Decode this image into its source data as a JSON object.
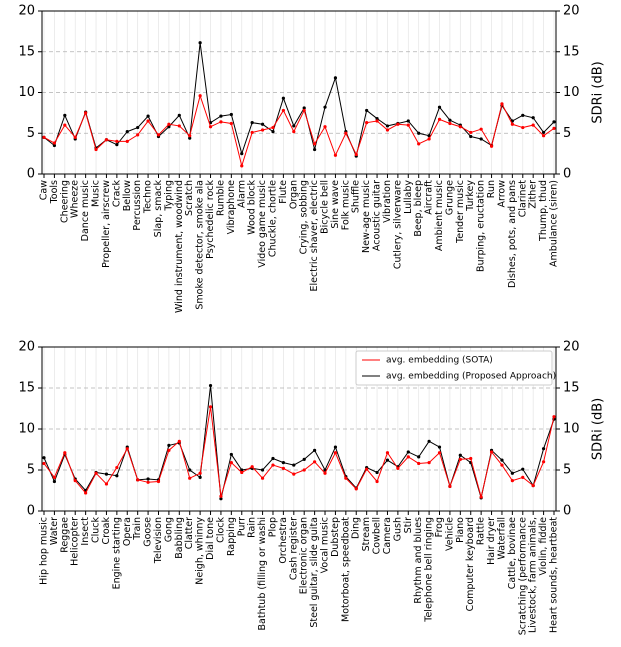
{
  "chart_data": [
    {
      "type": "line",
      "categories": [
        "Caw",
        "Tools",
        "Cheering",
        "Wheeze",
        "Dance music",
        "Music",
        "Propeller, airscrew",
        "Crack",
        "Bellow",
        "Percussion",
        "Techno",
        "Slap, smack",
        "Typing",
        "Wind instrument, woodwind",
        "Scratch",
        "Smoke detector, smoke ala",
        "Psychedelic rock",
        "Rumble",
        "Vibraphone",
        "Alarm",
        "Wood block",
        "Video game music",
        "Chuckle, chortle",
        "Flute",
        "Organ",
        "Crying, sobbing",
        "Electric shaver, electric",
        "Bicycle bell",
        "Sine wave",
        "Folk music",
        "Shuffle",
        "New-age music",
        "Acoustic guitar",
        "Vibration",
        "Cutlery, silverware",
        "Lullaby",
        "Beep, bleep",
        "Aircraft",
        "Ambient music",
        "Grunge",
        "Tender music",
        "Turkey",
        "Burping, eructation",
        "Run",
        "Arrow",
        "Dishes, pots, and pans",
        "Clarinet",
        "Zither",
        "Thump, thud",
        "Ambulance (siren)"
      ],
      "series": [
        {
          "color": "#ff0000",
          "values": [
            4.5,
            3.8,
            6.0,
            4.5,
            7.5,
            3.0,
            4.2,
            4.0,
            4.0,
            4.8,
            6.5,
            4.8,
            6.1,
            5.9,
            4.7,
            9.6,
            5.8,
            6.4,
            6.2,
            1.0,
            5.1,
            5.4,
            5.7,
            7.8,
            5.2,
            7.8,
            3.7,
            5.8,
            2.3,
            5.0,
            2.4,
            6.3,
            6.5,
            5.4,
            6.1,
            6.0,
            3.7,
            4.3,
            6.7,
            6.2,
            5.8,
            5.1,
            5.5,
            3.4,
            8.6,
            6.1,
            5.7,
            6.0,
            4.7,
            5.6
          ]
        },
        {
          "color": "#000000",
          "values": [
            4.5,
            3.5,
            7.2,
            4.3,
            7.6,
            3.2,
            4.2,
            3.6,
            5.2,
            5.7,
            7.1,
            4.6,
            5.8,
            7.2,
            4.4,
            16.1,
            6.3,
            7.1,
            7.3,
            2.5,
            6.3,
            6.1,
            5.2,
            9.3,
            5.9,
            8.1,
            3.0,
            8.2,
            11.8,
            5.2,
            2.2,
            7.8,
            6.8,
            5.9,
            6.2,
            6.5,
            5.0,
            4.7,
            8.2,
            6.6,
            6.0,
            4.6,
            4.3,
            3.5,
            8.4,
            6.5,
            7.2,
            6.9,
            5.1,
            6.4
          ]
        }
      ],
      "ylim": [
        0,
        20
      ],
      "yticks": [
        0,
        5,
        10,
        15,
        20
      ],
      "y2label": "SDRi (dB)",
      "grid": true
    },
    {
      "type": "line",
      "categories": [
        "Hip hop music",
        "Water",
        "Reggae",
        "Helicopter",
        "Insect",
        "Cluck",
        "Croak",
        "Engine starting",
        "Opera",
        "Train",
        "Goose",
        "Television",
        "Gong",
        "Babbling",
        "Clatter",
        "Neigh, whinny",
        "Dial tone",
        "Clock",
        "Rapping",
        "Purr",
        "Rain",
        "Bathtub (filling or washi",
        "Plop",
        "Orchestra",
        "Cash register",
        "Electronic organ",
        "Steel guitar, slide guita",
        "Vocal music",
        "Dubstep",
        "Motorboat, speedboat",
        "Ding",
        "Stream",
        "Cowbell",
        "Camera",
        "Gush",
        "Stir",
        "Rhythm and blues",
        "Telephone bell ringing",
        "Frog",
        "Vehicle",
        "Piano",
        "Computer keyboard",
        "Rattle",
        "Hair dryer",
        "Waterfall",
        "Cattle, bovinae",
        "Scratching (performance",
        "Livestock, farm animals,",
        "Violin, fiddle",
        "Heart sounds, heartbeat"
      ],
      "series": [
        {
          "name": "avg. embedding (SOTA)",
          "color": "#ff0000",
          "values": [
            5.8,
            4.1,
            7.1,
            3.7,
            2.2,
            4.6,
            3.3,
            5.3,
            7.6,
            3.8,
            3.5,
            3.6,
            7.4,
            8.5,
            4.0,
            4.6,
            12.7,
            1.8,
            5.9,
            4.7,
            5.4,
            4.0,
            5.6,
            5.2,
            4.5,
            5.0,
            6.0,
            4.6,
            7.1,
            4.0,
            2.7,
            5.1,
            3.6,
            7.1,
            5.2,
            6.6,
            5.8,
            5.9,
            7.1,
            3.0,
            6.3,
            6.4,
            1.7,
            7.2,
            5.6,
            3.7,
            4.1,
            3.1,
            6.0,
            11.5
          ]
        },
        {
          "name": "avg. embedding (Proposed Approach)",
          "color": "#000000",
          "values": [
            6.5,
            3.6,
            6.9,
            3.9,
            2.5,
            4.7,
            4.5,
            4.3,
            7.8,
            3.8,
            3.9,
            3.8,
            8.0,
            8.3,
            5.0,
            4.1,
            15.3,
            1.5,
            6.9,
            5.0,
            5.2,
            5.0,
            6.4,
            5.9,
            5.6,
            6.3,
            7.4,
            5.0,
            7.8,
            4.2,
            2.8,
            5.3,
            4.7,
            6.2,
            5.4,
            7.2,
            6.6,
            8.5,
            7.8,
            3.0,
            6.8,
            5.9,
            1.6,
            7.4,
            6.2,
            4.6,
            5.1,
            3.1,
            7.6,
            11.2
          ]
        }
      ],
      "ylim": [
        0,
        20
      ],
      "yticks": [
        0,
        5,
        10,
        15,
        20
      ],
      "y2label": "SDRi (dB)",
      "grid": true,
      "legend": "upper right"
    }
  ]
}
